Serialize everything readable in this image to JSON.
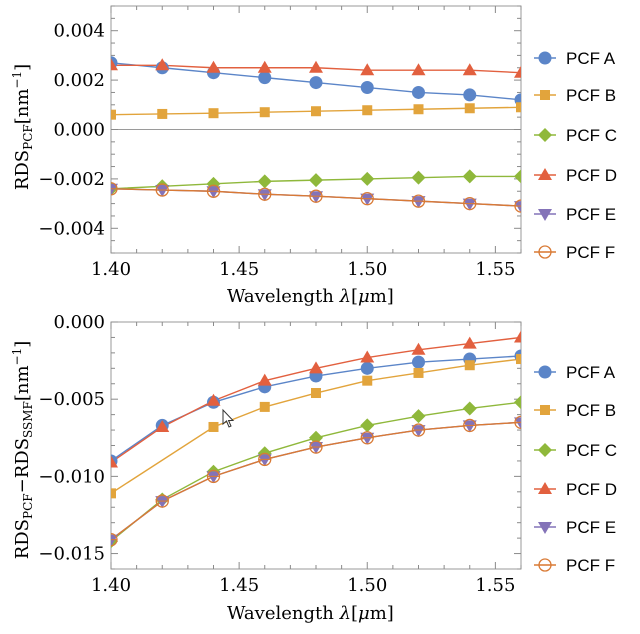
{
  "colors": {
    "PCF A": "#5b85c8",
    "PCF B": "#e2a43c",
    "PCF C": "#8fb83b",
    "PCF D": "#e2603f",
    "PCF E": "#8473b8",
    "PCF F": "#d97a35"
  },
  "markers": {
    "PCF A": "circle",
    "PCF B": "square",
    "PCF C": "diamond",
    "PCF D": "triangle-up",
    "PCF E": "triangle-down",
    "PCF F": "open-circle-cross"
  },
  "chart_data": [
    {
      "type": "line",
      "title": "",
      "xlabel_parts": [
        "Wavelength ",
        "λ",
        "[",
        "μ",
        "m]"
      ],
      "ylabel_parts": [
        "RDS",
        "PCF",
        "[nm",
        "−1",
        "]"
      ],
      "xlim": [
        1.4,
        1.56
      ],
      "ylim": [
        -0.005,
        0.005
      ],
      "xticks": [
        "1.40",
        "1.45",
        "1.50",
        "1.55"
      ],
      "yticks": [
        "0.004",
        "0.002",
        "0.000",
        "−0.002",
        "−0.004"
      ],
      "legend_placement": "right",
      "x": [
        1.4,
        1.42,
        1.44,
        1.46,
        1.48,
        1.5,
        1.52,
        1.54,
        1.56
      ],
      "series": [
        {
          "name": "PCF A",
          "values": [
            0.0027,
            0.0025,
            0.0023,
            0.0021,
            0.0019,
            0.0017,
            0.0015,
            0.0014,
            0.0012
          ]
        },
        {
          "name": "PCF B",
          "values": [
            0.0006,
            0.00063,
            0.00066,
            0.0007,
            0.00074,
            0.00078,
            0.00082,
            0.00086,
            0.0009
          ]
        },
        {
          "name": "PCF C",
          "values": [
            -0.0024,
            -0.0023,
            -0.0022,
            -0.0021,
            -0.00205,
            -0.002,
            -0.00195,
            -0.0019,
            -0.0019
          ]
        },
        {
          "name": "PCF D",
          "values": [
            0.0026,
            0.0026,
            0.0025,
            0.0025,
            0.0025,
            0.0024,
            0.0024,
            0.0024,
            0.0023
          ]
        },
        {
          "name": "PCF E",
          "values": [
            -0.0024,
            -0.00245,
            -0.0025,
            -0.00262,
            -0.0027,
            -0.0028,
            -0.0029,
            -0.003,
            -0.0031
          ]
        },
        {
          "name": "PCF F",
          "values": [
            -0.0024,
            -0.00245,
            -0.0025,
            -0.00262,
            -0.0027,
            -0.0028,
            -0.0029,
            -0.003,
            -0.0031
          ]
        }
      ]
    },
    {
      "type": "line",
      "title": "",
      "xlabel_parts": [
        "Wavelength ",
        "λ",
        "[",
        "μ",
        "m]"
      ],
      "ylabel_parts": [
        "RDS",
        "PCF",
        "−RDS",
        "SSMF",
        "[nm",
        "−1",
        "]"
      ],
      "xlim": [
        1.4,
        1.56
      ],
      "ylim": [
        -0.016,
        0.0
      ],
      "xticks": [
        "1.40",
        "1.45",
        "1.50",
        "1.55"
      ],
      "yticks": [
        "0.000",
        "−0.005",
        "−0.010",
        "−0.015"
      ],
      "legend_placement": "right",
      "x": [
        1.4,
        1.42,
        1.44,
        1.46,
        1.48,
        1.5,
        1.52,
        1.54,
        1.56
      ],
      "series": [
        {
          "name": "PCF A",
          "values": [
            -0.009,
            -0.0067,
            -0.0052,
            -0.0042,
            -0.0035,
            -0.003,
            -0.0026,
            -0.0024,
            -0.0022
          ]
        },
        {
          "name": "PCF B",
          "values": [
            -0.0111,
            null,
            -0.0068,
            -0.0055,
            -0.0046,
            -0.0038,
            -0.0033,
            -0.0028,
            -0.0024
          ]
        },
        {
          "name": "PCF C",
          "values": [
            -0.0142,
            -0.0115,
            -0.0097,
            -0.0085,
            -0.0075,
            -0.0067,
            -0.0061,
            -0.0056,
            -0.0052
          ]
        },
        {
          "name": "PCF D",
          "values": [
            -0.0091,
            -0.0068,
            -0.0051,
            -0.0038,
            -0.003,
            -0.0023,
            -0.0018,
            -0.0014,
            -0.001
          ]
        },
        {
          "name": "PCF E",
          "values": [
            -0.0141,
            -0.0116,
            -0.01,
            -0.0089,
            -0.0081,
            -0.0075,
            -0.007,
            -0.0067,
            -0.0065
          ]
        },
        {
          "name": "PCF F",
          "values": [
            -0.0141,
            -0.0116,
            -0.01,
            -0.0089,
            -0.0081,
            -0.0075,
            -0.007,
            -0.0067,
            -0.0065
          ]
        }
      ]
    }
  ]
}
